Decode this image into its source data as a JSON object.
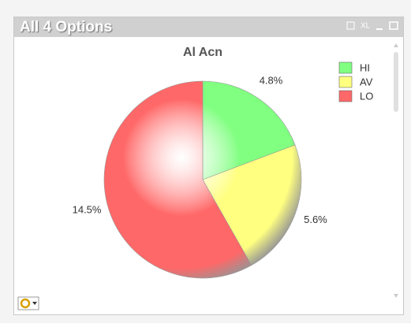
{
  "window": {
    "title": "All 4 Options",
    "export_label": "XL"
  },
  "chart_data": {
    "type": "pie",
    "title": "Al Acn",
    "categories": [
      "HI",
      "AV",
      "LO"
    ],
    "values": [
      4.8,
      5.6,
      14.5
    ],
    "value_labels": [
      "4.8%",
      "5.6%",
      "14.5%"
    ],
    "colors": [
      "#80ff80",
      "#ffff80",
      "#ff6868"
    ],
    "legend": "top-right"
  }
}
